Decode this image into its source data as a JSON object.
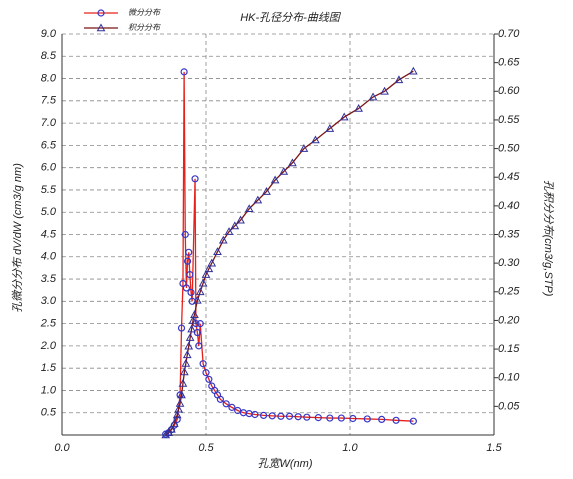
{
  "chart_data": {
    "type": "line",
    "title": "HK-孔径分布-曲线图",
    "x_label": "孔宽W(nm)",
    "y_label": "孔微分分布 dV/dW (cm3/g nm)",
    "y2_label": "孔积分分布(cm3/g,STP)",
    "legend": "top-left",
    "grid": true,
    "xlim": [
      0,
      1.5
    ],
    "xticks": [
      {
        "value": 0,
        "label": "0.0"
      },
      0.5,
      {
        "value": 1,
        "label": "1.0"
      },
      1.5
    ],
    "ylim": [
      0,
      9
    ],
    "yticks": [
      0.5,
      {
        "value": 1,
        "label": "1.0"
      },
      1.5,
      {
        "value": 2,
        "label": "2.0"
      },
      2.5,
      {
        "value": 3,
        "label": "3.0"
      },
      3.5,
      {
        "value": 4,
        "label": "4.0"
      },
      4.5,
      {
        "value": 5,
        "label": "5.0"
      },
      5.5,
      {
        "value": 6,
        "label": "6.0"
      },
      6.5,
      {
        "value": 7,
        "label": "7.0"
      },
      7.5,
      {
        "value": 8,
        "label": "8.0"
      },
      8.5,
      {
        "value": 9,
        "label": "9.0"
      }
    ],
    "y2lim": [
      0,
      0.7
    ],
    "y2ticks": [
      0.05,
      {
        "value": 0.1,
        "label": "0.10"
      },
      0.15,
      {
        "value": 0.2,
        "label": "0.20"
      },
      0.25,
      {
        "value": 0.3,
        "label": "0.30"
      },
      0.35,
      {
        "value": 0.4,
        "label": "0.40"
      },
      0.45,
      {
        "value": 0.5,
        "label": "0.50"
      },
      0.55,
      {
        "value": 0.6,
        "label": "0.60"
      },
      0.65,
      {
        "value": 0.7,
        "label": "0.70"
      }
    ],
    "series": [
      {
        "name": "微分分布",
        "color": "#e8201a",
        "marker": "circle",
        "marker_color": "#3636c8",
        "axis": "y",
        "x": [
          0.36,
          0.37,
          0.38,
          0.39,
          0.4,
          0.41,
          0.415,
          0.42,
          0.424,
          0.428,
          0.432,
          0.436,
          0.44,
          0.444,
          0.448,
          0.452,
          0.462,
          0.465,
          0.47,
          0.475,
          0.48,
          0.49,
          0.5,
          0.51,
          0.52,
          0.53,
          0.54,
          0.55,
          0.57,
          0.59,
          0.61,
          0.63,
          0.65,
          0.67,
          0.7,
          0.73,
          0.76,
          0.79,
          0.82,
          0.85,
          0.89,
          0.93,
          0.97,
          1.01,
          1.06,
          1.11,
          1.16,
          1.22
        ],
        "values": [
          0.02,
          0.05,
          0.12,
          0.22,
          0.35,
          0.9,
          2.4,
          3.4,
          8.15,
          4.5,
          3.3,
          3.9,
          4.1,
          3.6,
          3.2,
          3.0,
          5.75,
          2.5,
          2.3,
          2.0,
          2.5,
          1.6,
          1.4,
          1.25,
          1.1,
          1.0,
          0.9,
          0.8,
          0.7,
          0.62,
          0.55,
          0.5,
          0.48,
          0.46,
          0.44,
          0.43,
          0.42,
          0.42,
          0.41,
          0.4,
          0.39,
          0.38,
          0.38,
          0.37,
          0.36,
          0.35,
          0.33,
          0.31
        ]
      },
      {
        "name": "积分分布",
        "color": "#7a1414",
        "marker": "triangle",
        "marker_color": "#30309a",
        "axis": "y2",
        "x": [
          0.36,
          0.37,
          0.38,
          0.39,
          0.4,
          0.405,
          0.41,
          0.415,
          0.42,
          0.425,
          0.43,
          0.435,
          0.44,
          0.445,
          0.45,
          0.455,
          0.46,
          0.47,
          0.48,
          0.49,
          0.5,
          0.51,
          0.52,
          0.54,
          0.56,
          0.58,
          0.6,
          0.62,
          0.65,
          0.68,
          0.71,
          0.74,
          0.77,
          0.8,
          0.84,
          0.88,
          0.93,
          0.98,
          1.03,
          1.08,
          1.12,
          1.17,
          1.22
        ],
        "values": [
          0.0,
          0.004,
          0.01,
          0.02,
          0.035,
          0.045,
          0.055,
          0.07,
          0.09,
          0.11,
          0.125,
          0.14,
          0.155,
          0.17,
          0.185,
          0.2,
          0.21,
          0.235,
          0.25,
          0.265,
          0.28,
          0.29,
          0.3,
          0.32,
          0.34,
          0.355,
          0.365,
          0.375,
          0.395,
          0.41,
          0.425,
          0.445,
          0.46,
          0.475,
          0.5,
          0.515,
          0.535,
          0.555,
          0.57,
          0.59,
          0.6,
          0.62,
          0.635
        ]
      }
    ]
  }
}
